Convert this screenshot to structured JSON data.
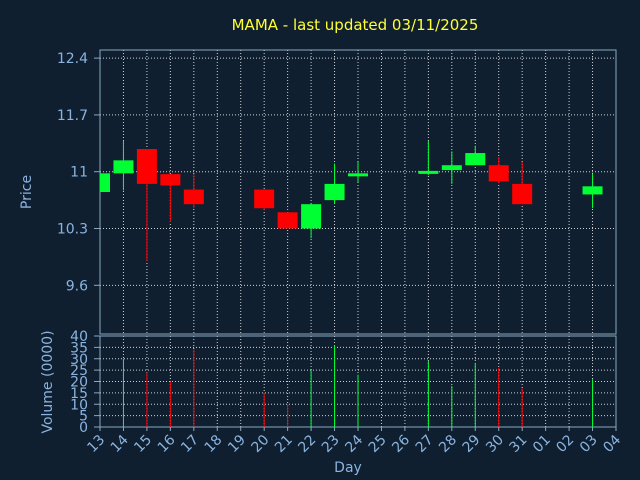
{
  "chart_data": {
    "type": "candlestick",
    "title": "MAMA - last updated 03/11/2025",
    "ylabel_price": "Price",
    "ylabel_volume": "Volume (0000)",
    "xlabel": "Day",
    "x_ticks": [
      "13",
      "14",
      "15",
      "16",
      "17",
      "18",
      "19",
      "20",
      "21",
      "22",
      "23",
      "24",
      "25",
      "26",
      "27",
      "28",
      "29",
      "30",
      "31",
      "01",
      "02",
      "03",
      "04"
    ],
    "price_ticks": [
      9.6,
      10.3,
      11,
      11.7,
      12.4
    ],
    "price_tick_labels": [
      "9.6",
      "10.3",
      "11",
      "11.7",
      "12.4"
    ],
    "price_range": [
      9.0,
      12.5
    ],
    "volume_ticks": [
      0,
      5,
      10,
      15,
      20,
      25,
      30,
      35,
      40
    ],
    "volume_tick_labels": [
      "0",
      "5",
      "10",
      "15",
      "20",
      "25",
      "30",
      "35",
      "40"
    ],
    "volume_range": [
      0,
      40
    ],
    "grid": true,
    "colors": {
      "background": "#0f1f30",
      "axis": "#8aa8c0",
      "grid": "#ffffff",
      "tick_text": "#8ab4e0",
      "title": "#ffff33",
      "up": "#00ff33",
      "down": "#ff0000"
    },
    "candles": [
      {
        "day": "13",
        "open": 10.75,
        "close": 10.98,
        "high": 10.98,
        "low": 10.75
      },
      {
        "day": "14",
        "open": 10.98,
        "close": 11.14,
        "high": 11.38,
        "low": 10.77
      },
      {
        "day": "15",
        "open": 11.28,
        "close": 10.85,
        "high": 11.28,
        "low": 9.9
      },
      {
        "day": "16",
        "open": 10.97,
        "close": 10.83,
        "high": 10.97,
        "low": 10.38
      },
      {
        "day": "17",
        "open": 10.78,
        "close": 10.6,
        "high": 10.97,
        "low": 10.55
      },
      {
        "day": "20",
        "open": 10.78,
        "close": 10.55,
        "high": 10.78,
        "low": 10.53
      },
      {
        "day": "21",
        "open": 10.5,
        "close": 10.3,
        "high": 10.5,
        "low": 10.3
      },
      {
        "day": "22",
        "open": 10.3,
        "close": 10.6,
        "high": 10.6,
        "low": 10.18
      },
      {
        "day": "23",
        "open": 10.65,
        "close": 10.85,
        "high": 11.1,
        "low": 10.6
      },
      {
        "day": "24",
        "open": 10.95,
        "close": 10.98,
        "high": 11.12,
        "low": 10.87
      },
      {
        "day": "27",
        "open": 10.98,
        "close": 11.01,
        "high": 11.38,
        "low": 10.96
      },
      {
        "day": "28",
        "open": 11.02,
        "close": 11.08,
        "high": 11.25,
        "low": 10.85
      },
      {
        "day": "29",
        "open": 11.08,
        "close": 11.23,
        "high": 11.32,
        "low": 11.08
      },
      {
        "day": "30",
        "open": 11.08,
        "close": 10.88,
        "high": 11.18,
        "low": 10.86
      },
      {
        "day": "31",
        "open": 10.85,
        "close": 10.6,
        "high": 11.12,
        "low": 10.6
      },
      {
        "day": "03",
        "open": 10.72,
        "close": 10.82,
        "high": 10.97,
        "low": 10.55
      }
    ],
    "volume": [
      {
        "day": "14",
        "value": 30
      },
      {
        "day": "15",
        "value": 24
      },
      {
        "day": "16",
        "value": 20
      },
      {
        "day": "17",
        "value": 34
      },
      {
        "day": "20",
        "value": 15
      },
      {
        "day": "21",
        "value": 10
      },
      {
        "day": "22",
        "value": 25
      },
      {
        "day": "23",
        "value": 36
      },
      {
        "day": "24",
        "value": 23
      },
      {
        "day": "27",
        "value": 29
      },
      {
        "day": "28",
        "value": 18
      },
      {
        "day": "29",
        "value": 28
      },
      {
        "day": "30",
        "value": 26
      },
      {
        "day": "31",
        "value": 17
      },
      {
        "day": "03",
        "value": 21
      }
    ]
  }
}
